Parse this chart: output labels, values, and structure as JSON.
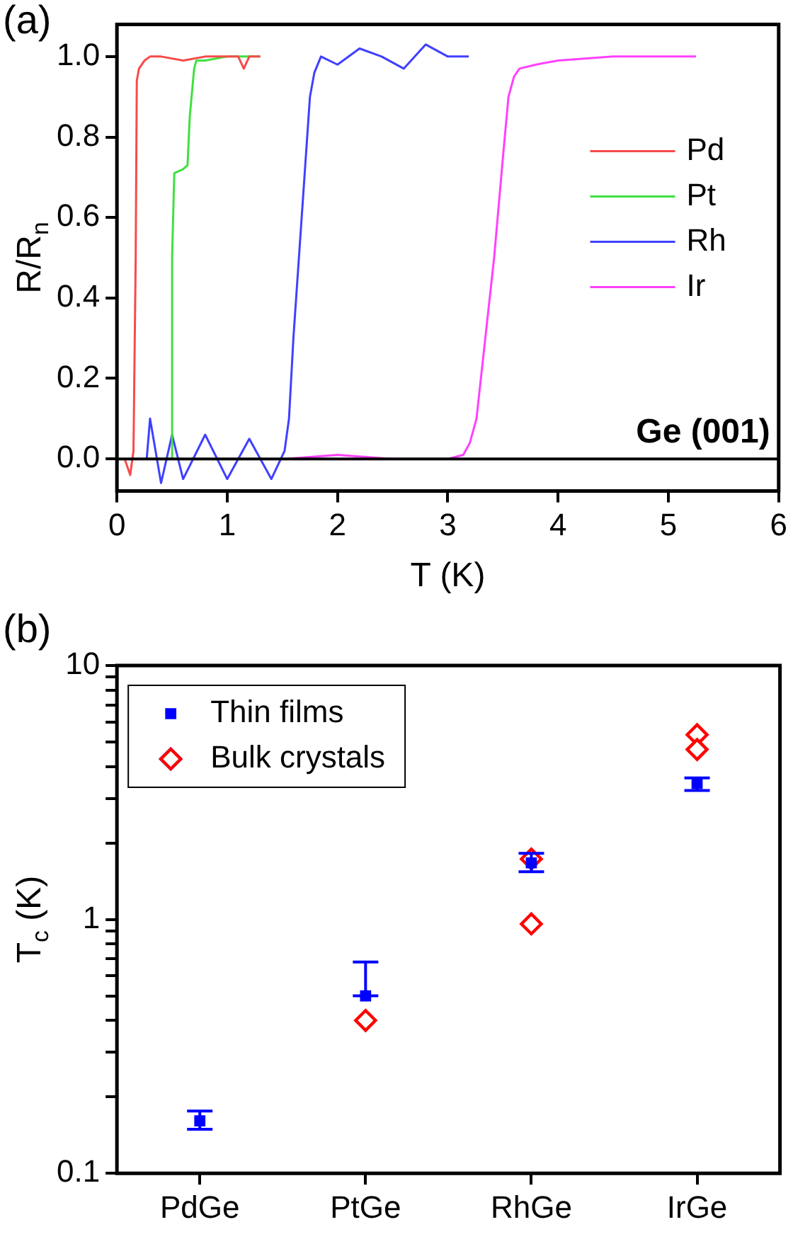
{
  "chart_data": [
    {
      "type": "line",
      "xlabel": "T (K)",
      "ylabel": "R/R$_{n}$",
      "annotations": [
        "(a)",
        "Ge (001)"
      ],
      "legend": "right",
      "xlim": [
        0,
        6
      ],
      "xticks": [
        0,
        1,
        2,
        3,
        4,
        5,
        6
      ],
      "ylim": [
        -0.08,
        1.08
      ],
      "yticks": [
        {
          "value": 0,
          "label": "0.0"
        },
        {
          "value": 0.2,
          "label": "0.2"
        },
        {
          "value": 0.4,
          "label": "0.4"
        },
        {
          "value": 0.6,
          "label": "0.6"
        },
        {
          "value": 0.8,
          "label": "0.8"
        },
        {
          "value": 1,
          "label": "1.0"
        }
      ],
      "ref_lines": [
        {
          "axis": "y",
          "value": 0,
          "color": "#000000"
        }
      ],
      "series": [
        {
          "name": "Pd",
          "color": "#f84a4a",
          "x": [
            0.07,
            0.12,
            0.15,
            0.17,
            0.18,
            0.2,
            0.25,
            0.3,
            0.4,
            0.6,
            0.8,
            1.0,
            1.1,
            1.15,
            1.2,
            1.3
          ],
          "values": [
            0,
            -0.04,
            0.02,
            0.5,
            0.94,
            0.97,
            0.99,
            1.0,
            1.0,
            0.99,
            1.0,
            1.0,
            1.0,
            0.97,
            1.0,
            1.0
          ]
        },
        {
          "name": "Pt",
          "color": "#40e040",
          "x": [
            0.25,
            0.5,
            0.5,
            0.52,
            0.6,
            0.64,
            0.66,
            0.7,
            0.72,
            0.8,
            1.0,
            1.3
          ],
          "values": [
            0,
            0,
            0.5,
            0.71,
            0.72,
            0.73,
            0.85,
            0.97,
            0.99,
            0.99,
            1.0,
            1.0
          ]
        },
        {
          "name": "Rh",
          "color": "#4040ff",
          "x": [
            0.27,
            0.3,
            0.4,
            0.5,
            0.6,
            0.8,
            1.0,
            1.2,
            1.4,
            1.52,
            1.56,
            1.6,
            1.65,
            1.7,
            1.75,
            1.79,
            1.85,
            2.0,
            2.2,
            2.4,
            2.6,
            2.8,
            3.0,
            3.19
          ],
          "values": [
            0,
            0.1,
            -0.06,
            0.06,
            -0.05,
            0.06,
            -0.05,
            0.05,
            -0.05,
            0.02,
            0.1,
            0.3,
            0.5,
            0.7,
            0.9,
            0.96,
            1.0,
            0.98,
            1.02,
            1.0,
            0.97,
            1.03,
            1.0,
            1.0
          ]
        },
        {
          "name": "Ir",
          "color": "#ff40ff",
          "x": [
            1.52,
            2.0,
            2.5,
            3.0,
            3.14,
            3.2,
            3.26,
            3.34,
            3.42,
            3.5,
            3.55,
            3.6,
            3.65,
            3.8,
            4.0,
            4.5,
            5.0,
            5.25
          ],
          "values": [
            0,
            0.01,
            0,
            0,
            0.01,
            0.04,
            0.1,
            0.3,
            0.5,
            0.75,
            0.9,
            0.95,
            0.97,
            0.98,
            0.99,
            1.0,
            1.0,
            1.0
          ]
        }
      ]
    },
    {
      "type": "scatter",
      "ylabel": "T$_{c}$ (K)",
      "annotations": [
        "(b)"
      ],
      "legend": "top left",
      "log": "y",
      "categories": [
        "PdGe",
        "PtGe",
        "RhGe",
        "IrGe"
      ],
      "ylim": [
        0.1,
        10
      ],
      "yticks": [
        0.1,
        {
          "value": 0.2,
          "label": null
        },
        {
          "value": 0.3,
          "label": null
        },
        {
          "value": 0.4,
          "label": null
        },
        {
          "value": 0.5,
          "label": null
        },
        {
          "value": 0.6,
          "label": null
        },
        {
          "value": 0.7,
          "label": null
        },
        {
          "value": 0.8,
          "label": null
        },
        {
          "value": 0.9,
          "label": null
        },
        1,
        {
          "value": 2,
          "label": null
        },
        {
          "value": 3,
          "label": null
        },
        {
          "value": 4,
          "label": null
        },
        {
          "value": 5,
          "label": null
        },
        {
          "value": 6,
          "label": null
        },
        {
          "value": 7,
          "label": null
        },
        {
          "value": 8,
          "label": null
        },
        {
          "value": 9,
          "label": null
        },
        10
      ],
      "series": [
        {
          "name": "Thin films",
          "color": "#0000ff",
          "marker": "square",
          "values": [
            0.161,
            0.5,
            1.67,
            3.43
          ],
          "errors": [
            [
              0.149,
              0.176
            ],
            [
              0.5,
              0.68
            ],
            [
              1.54,
              1.82
            ],
            [
              3.22,
              3.61
            ]
          ]
        },
        {
          "name": "Bulk crystals",
          "color": "#ff0000",
          "marker": "diamond",
          "x": [
            "PtGe",
            "RhGe",
            "RhGe",
            "IrGe",
            "IrGe"
          ],
          "values": [
            0.4,
            0.96,
            1.73,
            5.34,
            4.67
          ]
        }
      ]
    }
  ]
}
